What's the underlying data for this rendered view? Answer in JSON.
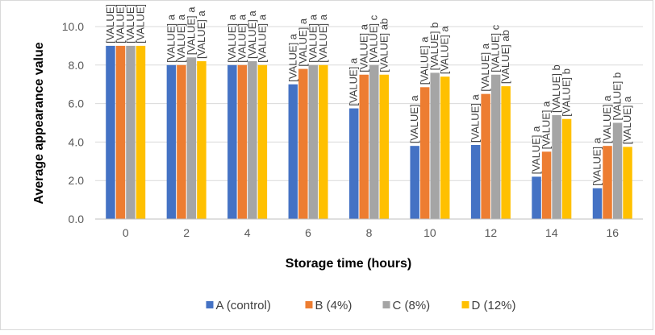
{
  "chart_data": {
    "type": "bar",
    "title": "",
    "xlabel": "Storage time (hours)",
    "ylabel": "Average appearance value",
    "categories": [
      "0",
      "2",
      "4",
      "6",
      "8",
      "10",
      "12",
      "14",
      "16"
    ],
    "ylim": [
      0,
      10
    ],
    "yticks": [
      "0.0",
      "2.0",
      "4.0",
      "6.0",
      "8.0",
      "10.0"
    ],
    "grid": "horizontal",
    "legend_position": "bottom",
    "series": [
      {
        "name": "A (control)",
        "color": "#4472C4",
        "values": [
          9.0,
          8.0,
          8.0,
          7.0,
          5.75,
          3.8,
          3.85,
          2.2,
          1.6
        ],
        "labels": [
          "[VALUE] a",
          "[VALUE] a",
          "[VALUE] a",
          "[VALUE] a",
          "[VALUE] a",
          "[VALUE] a",
          "[VALUE] a",
          "[VALUE] a",
          "[VALUE] a"
        ]
      },
      {
        "name": "B (4%)",
        "color": "#ED7D31",
        "values": [
          9.0,
          8.0,
          8.0,
          7.8,
          7.5,
          6.85,
          6.5,
          3.5,
          3.8
        ],
        "labels": [
          "[VALUE] a",
          "[VALUE] a",
          "[VALUE] a",
          "[VALUE] a",
          "[VALUE] a",
          "[VALUE] a",
          "[VALUE] a",
          "[VALUE] a",
          "[VALUE] a"
        ]
      },
      {
        "name": "C (8%)",
        "color": "#A5A5A5",
        "values": [
          9.0,
          8.4,
          8.2,
          8.0,
          8.0,
          7.6,
          7.5,
          5.4,
          5.0
        ],
        "labels": [
          "[VALUE] a",
          "[VALUE] a",
          "[VALUE] a",
          "[VALUE] a",
          "[VALUE] c",
          "[VALUE] b",
          "[VALUE] c",
          "[VALUE] b",
          "[VALUE] b"
        ]
      },
      {
        "name": "D (12%)",
        "color": "#FFC000",
        "values": [
          9.0,
          8.2,
          8.0,
          8.0,
          7.5,
          7.4,
          6.9,
          5.2,
          3.75
        ],
        "labels": [
          "[VALUE] a",
          "[VALUE] a",
          "[VALUE] a",
          "[VALUE] a",
          "[VALUE] ab",
          "[VALUE] a",
          "[VALUE] ab",
          "[VALUE] b",
          "[VALUE] a"
        ]
      }
    ]
  }
}
